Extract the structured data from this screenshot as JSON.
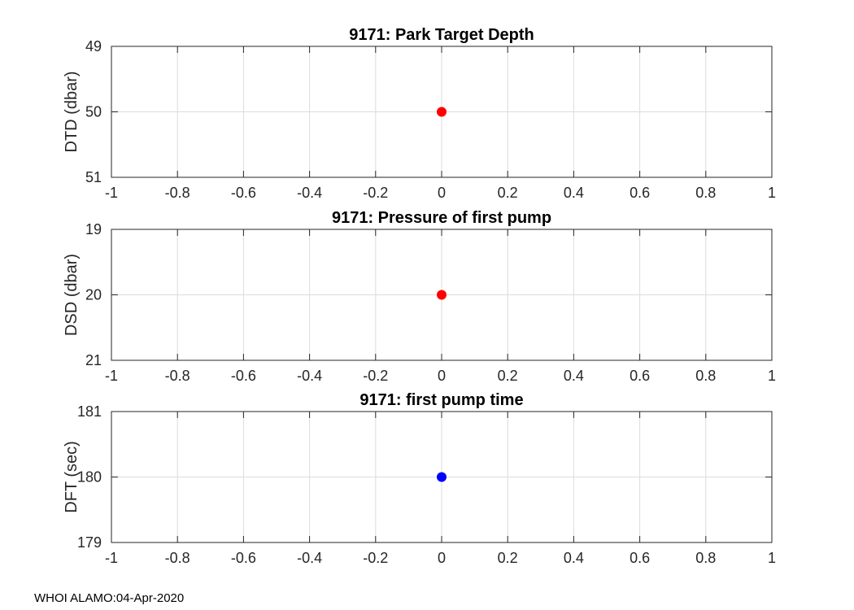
{
  "footer": {
    "text": "WHOI ALAMO:04-Apr-2020"
  },
  "colors": {
    "grid": "#dcdcdc",
    "axis": "#262626",
    "background": "#ffffff"
  },
  "chart_data": [
    {
      "type": "scatter",
      "title": "9171: Park Target Depth",
      "xlabel": "",
      "ylabel": "DTD (dbar)",
      "xlim": [
        -1,
        1
      ],
      "ylim": [
        49,
        51
      ],
      "y_reversed": true,
      "grid": true,
      "xticks": [
        -1,
        -0.8,
        -0.6,
        -0.4,
        -0.2,
        0,
        0.2,
        0.4,
        0.6,
        0.8,
        1
      ],
      "xtick_labels": [
        "-1",
        "-0.8",
        "-0.6",
        "-0.4",
        "-0.2",
        "0",
        "0.2",
        "0.4",
        "0.6",
        "0.8",
        "1"
      ],
      "yticks": [
        49,
        50,
        51
      ],
      "ytick_labels": [
        "49",
        "50",
        "51"
      ],
      "points": [
        {
          "x": 0,
          "y": 50
        }
      ],
      "marker_color": "#ff0000"
    },
    {
      "type": "scatter",
      "title": "9171: Pressure of first pump",
      "xlabel": "",
      "ylabel": "DSD (dbar)",
      "xlim": [
        -1,
        1
      ],
      "ylim": [
        19,
        21
      ],
      "y_reversed": true,
      "grid": true,
      "xticks": [
        -1,
        -0.8,
        -0.6,
        -0.4,
        -0.2,
        0,
        0.2,
        0.4,
        0.6,
        0.8,
        1
      ],
      "xtick_labels": [
        "-1",
        "-0.8",
        "-0.6",
        "-0.4",
        "-0.2",
        "0",
        "0.2",
        "0.4",
        "0.6",
        "0.8",
        "1"
      ],
      "yticks": [
        19,
        20,
        21
      ],
      "ytick_labels": [
        "19",
        "20",
        "21"
      ],
      "points": [
        {
          "x": 0,
          "y": 20
        }
      ],
      "marker_color": "#ff0000"
    },
    {
      "type": "scatter",
      "title": "9171: first pump time",
      "xlabel": "",
      "ylabel": "DFT (sec)",
      "xlim": [
        -1,
        1
      ],
      "ylim": [
        179,
        181
      ],
      "y_reversed": false,
      "grid": true,
      "xticks": [
        -1,
        -0.8,
        -0.6,
        -0.4,
        -0.2,
        0,
        0.2,
        0.4,
        0.6,
        0.8,
        1
      ],
      "xtick_labels": [
        "-1",
        "-0.8",
        "-0.6",
        "-0.4",
        "-0.2",
        "0",
        "0.2",
        "0.4",
        "0.6",
        "0.8",
        "1"
      ],
      "yticks": [
        179,
        180,
        181
      ],
      "ytick_labels": [
        "179",
        "180",
        "181"
      ],
      "points": [
        {
          "x": 0,
          "y": 180
        }
      ],
      "marker_color": "#0000ff"
    }
  ]
}
